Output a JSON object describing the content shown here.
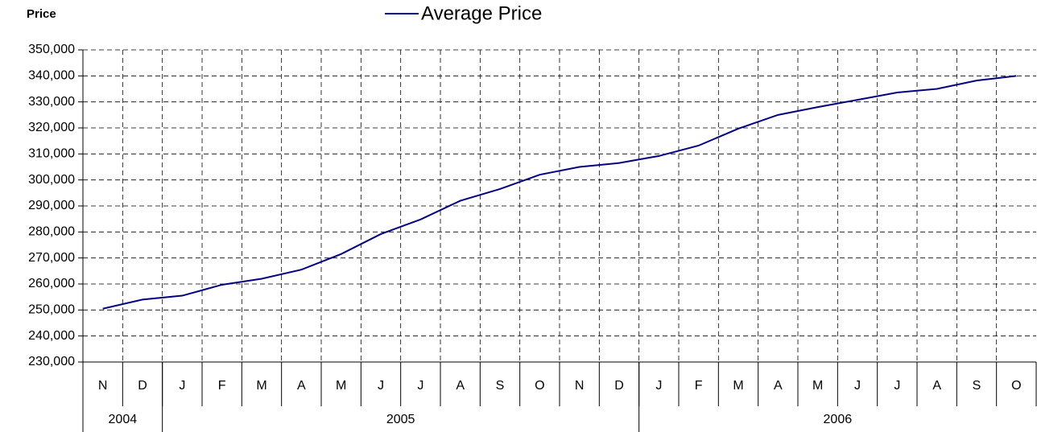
{
  "chart_data": {
    "type": "line",
    "y_label": "Price",
    "categories": [
      "N",
      "D",
      "J",
      "F",
      "M",
      "A",
      "M",
      "J",
      "J",
      "A",
      "S",
      "O",
      "N",
      "D",
      "J",
      "F",
      "M",
      "A",
      "M",
      "J",
      "J",
      "A",
      "S",
      "O"
    ],
    "x_groups": [
      {
        "label": "2004",
        "count": 2
      },
      {
        "label": "2005",
        "count": 12
      },
      {
        "label": "2006",
        "count": 10
      }
    ],
    "series": [
      {
        "name": "Average Price",
        "color": "#000080",
        "values": [
          250500,
          254000,
          255500,
          259700,
          262000,
          265500,
          271500,
          279200,
          284800,
          292000,
          296500,
          302000,
          305000,
          306500,
          309200,
          313200,
          319700,
          325000,
          328000,
          330800,
          333600,
          335000,
          338200,
          340000
        ]
      }
    ],
    "ylim": [
      230000,
      350000
    ],
    "yticks": [
      {
        "value": 230000,
        "label": "230,000"
      },
      {
        "value": 240000,
        "label": "240,000"
      },
      {
        "value": 250000,
        "label": "250,000"
      },
      {
        "value": 260000,
        "label": "260,000"
      },
      {
        "value": 270000,
        "label": "270,000"
      },
      {
        "value": 280000,
        "label": "280,000"
      },
      {
        "value": 290000,
        "label": "290,000"
      },
      {
        "value": 300000,
        "label": "300,000"
      },
      {
        "value": 310000,
        "label": "310,000"
      },
      {
        "value": 320000,
        "label": "320,000"
      },
      {
        "value": 330000,
        "label": "330,000"
      },
      {
        "value": 340000,
        "label": "340,000"
      },
      {
        "value": 350000,
        "label": "350,000"
      }
    ],
    "grid": true,
    "grid_style": "dashed",
    "legend_position": "top"
  }
}
